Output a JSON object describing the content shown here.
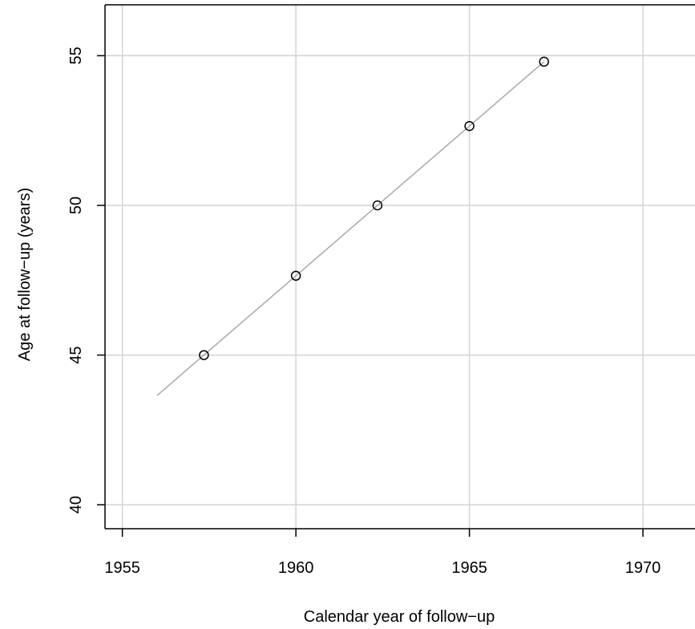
{
  "chart_data": {
    "type": "scatter",
    "title": "",
    "xlabel": "Calendar year of follow−up",
    "ylabel": "Age at follow−up (years)",
    "xlim": [
      1954.5,
      1971.5
    ],
    "ylim": [
      39.2,
      56.7
    ],
    "x_ticks": [
      1955,
      1960,
      1965,
      1970
    ],
    "y_ticks": [
      40,
      45,
      50,
      55
    ],
    "x_tick_labels": [
      "1955",
      "1960",
      "1965",
      "1970"
    ],
    "y_tick_labels": [
      "40",
      "45",
      "50",
      "55"
    ],
    "grid": true,
    "points": [
      {
        "x": 1957.35,
        "y": 45.0
      },
      {
        "x": 1960.0,
        "y": 47.65
      },
      {
        "x": 1962.35,
        "y": 50.0
      },
      {
        "x": 1965.0,
        "y": 52.65
      },
      {
        "x": 1967.15,
        "y": 54.8
      }
    ],
    "line": {
      "x": [
        1956.0,
        1967.15
      ],
      "y": [
        43.65,
        54.8
      ]
    },
    "colors": {
      "grid": "#d3d3d3",
      "line": "#a9a9a9",
      "points": "#000000",
      "axis": "#000000"
    }
  }
}
